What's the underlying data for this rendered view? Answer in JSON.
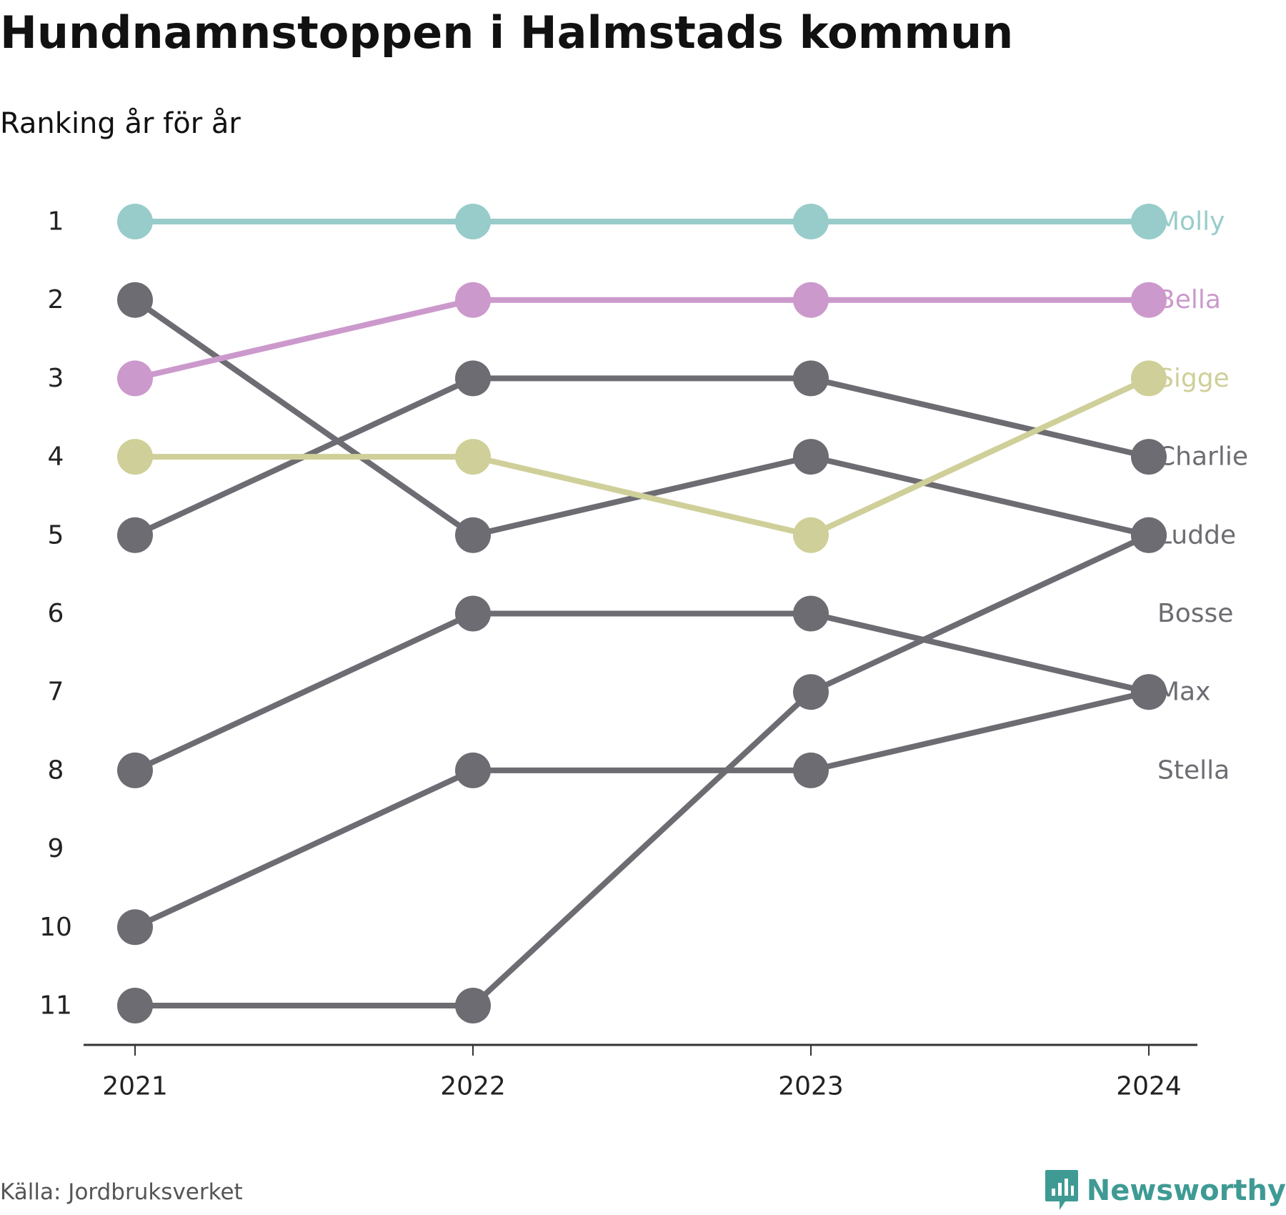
{
  "header": {
    "title": "Hundnamnstoppen i Halmstads kommun",
    "subtitle": "Ranking år för år"
  },
  "footer": {
    "source": "Källa: Jordbruksverket",
    "brand": "Newsworthy",
    "brand_icon": "chart-bars-icon",
    "brand_color": "#3f9a94"
  },
  "chart_data": {
    "type": "line",
    "x": [
      "2021",
      "2022",
      "2023",
      "2024"
    ],
    "y_ticks": [
      "1",
      "2",
      "3",
      "4",
      "5",
      "6",
      "7",
      "8",
      "9",
      "10",
      "11"
    ],
    "ylim": [
      1,
      11
    ],
    "y_reversed": true,
    "grid": false,
    "default_color": "#6d6c72",
    "series": [
      {
        "name": "Molly",
        "values": [
          1,
          1,
          1,
          1
        ],
        "color": "#98ccca"
      },
      {
        "name": "Bella",
        "values": [
          3,
          2,
          2,
          2
        ],
        "color": "#cc99cc"
      },
      {
        "name": "Sigge",
        "values": [
          4,
          4,
          5,
          3
        ],
        "color": "#cfcf99"
      },
      {
        "name": "Charlie",
        "values": [
          5,
          3,
          3,
          4
        ],
        "color": "#6d6c72"
      },
      {
        "name": "Ludde",
        "values": [
          11,
          11,
          7,
          5
        ],
        "color": "#6d6c72"
      },
      {
        "name": "Bosse",
        "values": [
          2,
          5,
          4,
          5
        ],
        "color": "#6d6c72"
      },
      {
        "name": "Max",
        "values": [
          8,
          6,
          6,
          7
        ],
        "color": "#6d6c72"
      },
      {
        "name": "Stella",
        "values": [
          10,
          8,
          8,
          7
        ],
        "color": "#6d6c72"
      }
    ],
    "end_labels": [
      {
        "text": "Molly",
        "rank": 1,
        "color": "#98ccca"
      },
      {
        "text": "Bella",
        "rank": 2,
        "color": "#cc99cc"
      },
      {
        "text": "Sigge",
        "rank": 3,
        "color": "#cfcf99"
      },
      {
        "text": "Charlie",
        "rank": 4,
        "color": "#6d6c72"
      },
      {
        "text": "Ludde",
        "rank": 5,
        "color": "#6d6c72"
      },
      {
        "text": "Bosse",
        "rank": 6,
        "color": "#6d6c72"
      },
      {
        "text": "Max",
        "rank": 7,
        "color": "#6d6c72"
      },
      {
        "text": "Stella",
        "rank": 8,
        "color": "#6d6c72"
      }
    ]
  }
}
